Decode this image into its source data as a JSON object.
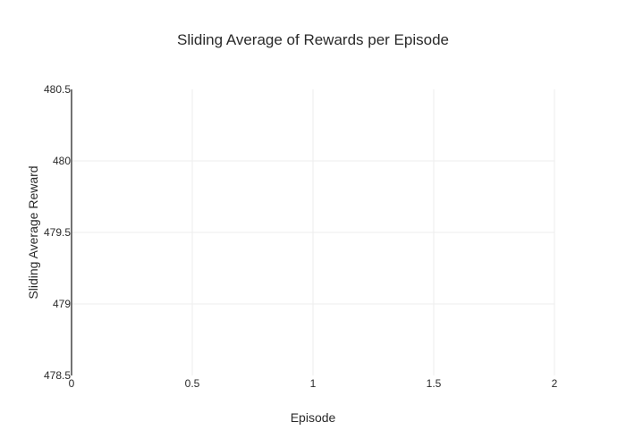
{
  "chart_data": {
    "type": "line",
    "title": "Sliding Average of Rewards per Episode",
    "xlabel": "Episode",
    "ylabel": "Sliding Average Reward",
    "xlim": [
      0,
      2
    ],
    "ylim": [
      478.5,
      480.5
    ],
    "x_ticks": [
      0,
      0.5,
      1,
      1.5,
      2
    ],
    "y_ticks": [
      478.5,
      479,
      479.5,
      480,
      480.5
    ],
    "x_tick_labels": [
      "0",
      "0.5",
      "1",
      "1.5",
      "2"
    ],
    "y_tick_labels": [
      "478.5",
      "479",
      "479.5",
      "480",
      "480.5"
    ],
    "grid": true,
    "series": [
      {
        "x": [],
        "y": []
      }
    ],
    "colors": {
      "grid": "#eeeeee",
      "axis_line": "#444444",
      "text": "#2a2a2a",
      "background": "#ffffff"
    }
  }
}
